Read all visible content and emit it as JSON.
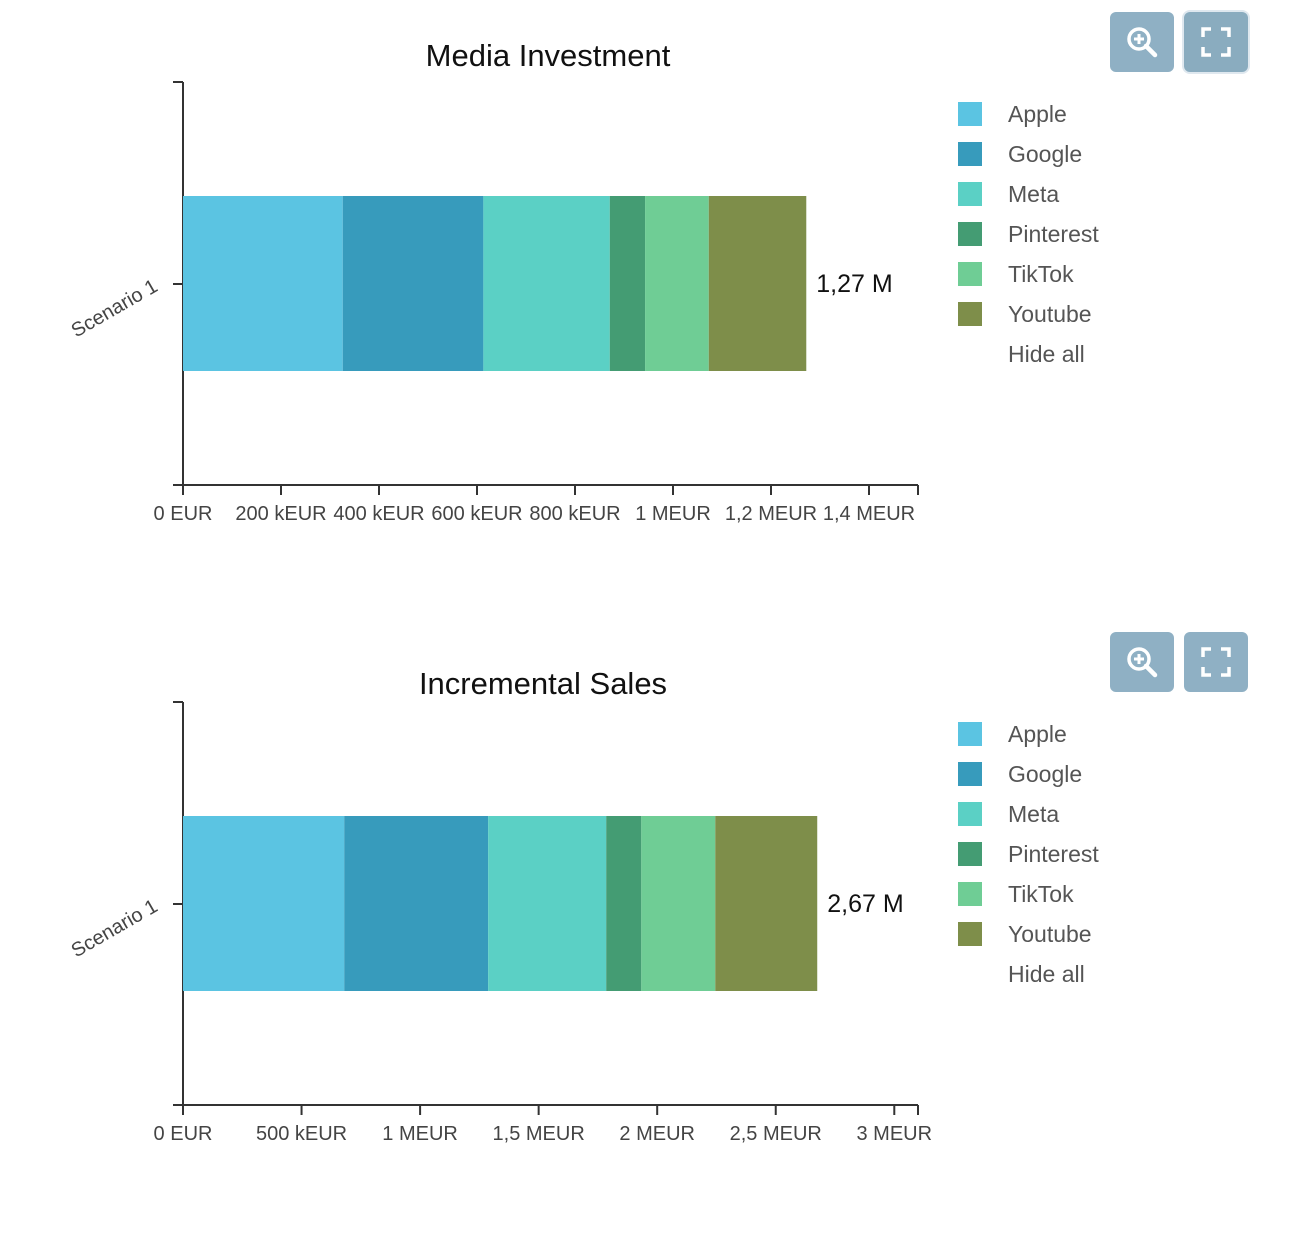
{
  "colors": {
    "Apple": "#5bc4e2",
    "Google": "#379bbc",
    "Meta": "#5bd0c5",
    "Pinterest": "#449c73",
    "TikTok": "#6fcd95",
    "Youtube": "#7e8e4a",
    "button_bg": "#8fb0c4"
  },
  "icons": {
    "zoom": "zoom-in-icon",
    "fullscreen": "fullscreen-icon"
  },
  "legend_extra": "Hide all",
  "chart_data": [
    {
      "type": "bar",
      "orientation": "horizontal",
      "stacked": true,
      "title": "Media Investment",
      "categories": [
        "Scenario 1"
      ],
      "series": [
        {
          "name": "Apple",
          "values": [
            326000
          ]
        },
        {
          "name": "Google",
          "values": [
            287000
          ]
        },
        {
          "name": "Meta",
          "values": [
            258000
          ]
        },
        {
          "name": "Pinterest",
          "values": [
            72000
          ]
        },
        {
          "name": "TikTok",
          "values": [
            130000
          ]
        },
        {
          "name": "Youtube",
          "values": [
            199000
          ]
        }
      ],
      "total_label": "1,27 M",
      "xlim": [
        0,
        1500000
      ],
      "xticks": [
        0,
        200000,
        400000,
        600000,
        800000,
        1000000,
        1200000,
        1400000
      ],
      "xtick_labels": [
        "0 EUR",
        "200 kEUR",
        "400 kEUR",
        "600 kEUR",
        "800 kEUR",
        "1 MEUR",
        "1,2 MEUR",
        "1,4 MEUR"
      ],
      "xlabel": "",
      "ylabel": "",
      "grid": false,
      "legend_position": "right"
    },
    {
      "type": "bar",
      "orientation": "horizontal",
      "stacked": true,
      "title": "Incremental Sales",
      "categories": [
        "Scenario 1"
      ],
      "series": [
        {
          "name": "Apple",
          "values": [
            680000
          ]
        },
        {
          "name": "Google",
          "values": [
            607000
          ]
        },
        {
          "name": "Meta",
          "values": [
            498000
          ]
        },
        {
          "name": "Pinterest",
          "values": [
            148000
          ]
        },
        {
          "name": "TikTok",
          "values": [
            312000
          ]
        },
        {
          "name": "Youtube",
          "values": [
            430000
          ]
        }
      ],
      "total_label": "2,67 M",
      "xlim": [
        0,
        3100000
      ],
      "xticks": [
        0,
        500000,
        1000000,
        1500000,
        2000000,
        2500000,
        3000000
      ],
      "xtick_labels": [
        "0 EUR",
        "500 kEUR",
        "1 MEUR",
        "1,5 MEUR",
        "2 MEUR",
        "2,5 MEUR",
        "3 MEUR"
      ],
      "xlabel": "",
      "ylabel": "",
      "grid": false,
      "legend_position": "right"
    }
  ]
}
